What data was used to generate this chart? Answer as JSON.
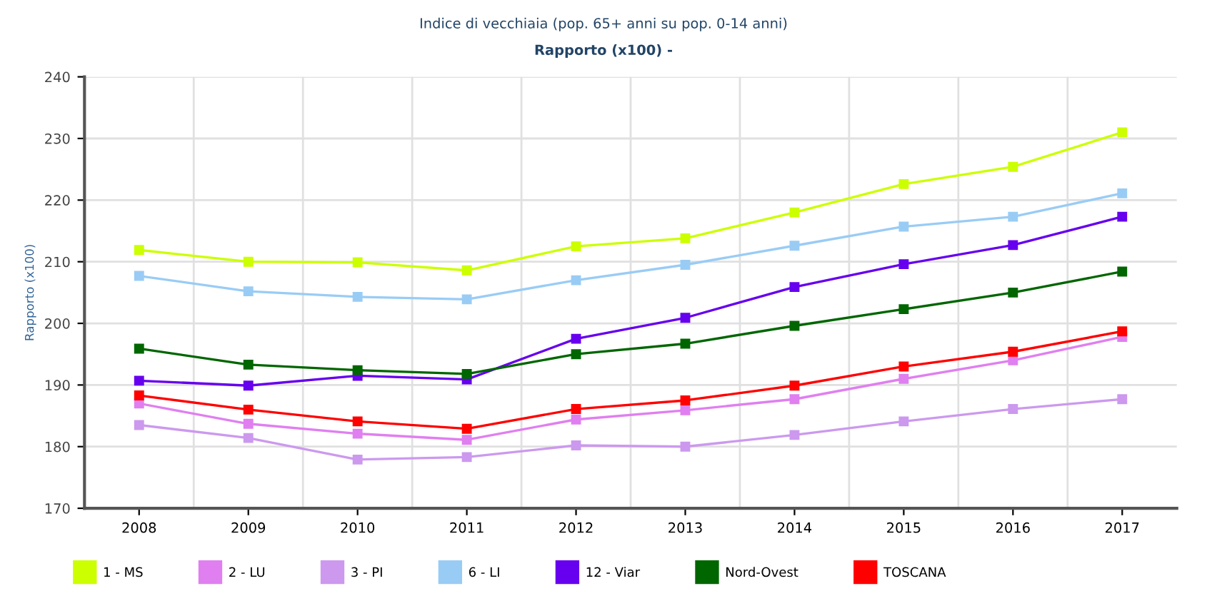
{
  "chart_data": {
    "type": "line",
    "title": "Indice di vecchiaia (pop. 65+ anni su pop. 0-14 anni)",
    "subtitle": "Rapporto (x100) -",
    "ylabel": "Rapporto (x100)",
    "categories": [
      "2008",
      "2009",
      "2010",
      "2011",
      "2012",
      "2013",
      "2014",
      "2015",
      "2016",
      "2017"
    ],
    "ylim": [
      170,
      240
    ],
    "yticks": [
      170,
      180,
      190,
      200,
      210,
      220,
      230,
      240
    ],
    "grid": true,
    "legend": "bottom",
    "marker": "square",
    "line_style": "solid",
    "series": [
      {
        "name": "1 - MS",
        "color": "#ccff00",
        "values": [
          211.9,
          210.0,
          209.9,
          208.6,
          212.5,
          213.8,
          218.0,
          222.6,
          225.4,
          231.0
        ]
      },
      {
        "name": "2 - LU",
        "color": "#e07ff0",
        "values": [
          187.0,
          183.7,
          182.1,
          181.1,
          184.4,
          185.9,
          187.7,
          191.0,
          194.0,
          197.8
        ]
      },
      {
        "name": "3 - PI",
        "color": "#cc99ee",
        "values": [
          183.5,
          181.4,
          177.9,
          178.3,
          180.2,
          180.0,
          181.9,
          184.1,
          186.1,
          187.7
        ]
      },
      {
        "name": "6 - LI",
        "color": "#99ccf5",
        "values": [
          207.7,
          205.2,
          204.3,
          203.9,
          207.0,
          209.5,
          212.6,
          215.7,
          217.3,
          221.1
        ]
      },
      {
        "name": "12 - Viar",
        "color": "#6600ee",
        "values": [
          190.7,
          189.9,
          191.5,
          190.9,
          197.5,
          200.9,
          205.9,
          209.6,
          212.7,
          217.3
        ]
      },
      {
        "name": "Nord-Ovest",
        "color": "#006600",
        "values": [
          195.9,
          193.3,
          192.4,
          191.8,
          195.0,
          196.7,
          199.6,
          202.3,
          205.0,
          208.4
        ]
      },
      {
        "name": "TOSCANA",
        "color": "#ff0000",
        "values": [
          188.3,
          186.0,
          184.1,
          182.9,
          186.1,
          187.5,
          189.9,
          193.0,
          195.4,
          198.7
        ]
      }
    ]
  }
}
